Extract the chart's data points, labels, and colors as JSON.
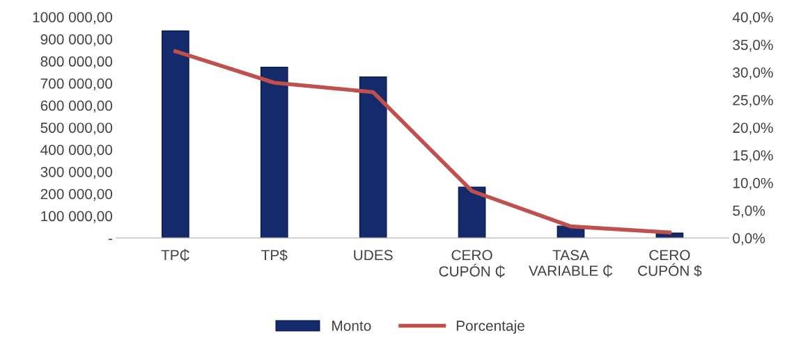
{
  "chart_data": {
    "type": "bar",
    "categories": [
      "TP₵",
      "TP$",
      "UDES",
      "CERO\nCUPÓN ₵",
      "TASA\nVARIABLE ₵",
      "CERO\nCUPÓN $"
    ],
    "series": [
      {
        "name": "Monto",
        "color": "#142a6b",
        "values": [
          937000,
          773000,
          729000,
          230000,
          54000,
          22000
        ]
      },
      {
        "name": "Porcentaje",
        "type": "line",
        "axis": "y2",
        "color": "#c0504d",
        "values": [
          33.8,
          28.1,
          26.4,
          8.5,
          2.1,
          1.0
        ]
      }
    ],
    "ylim": [
      0,
      1000000
    ],
    "yticks": [
      {
        "value": 0,
        "label": "-"
      },
      {
        "value": 100000,
        "label": "100 000,00"
      },
      {
        "value": 200000,
        "label": "200 000,00"
      },
      {
        "value": 300000,
        "label": "300 000,00"
      },
      {
        "value": 400000,
        "label": "400 000,00"
      },
      {
        "value": 500000,
        "label": "500 000,00"
      },
      {
        "value": 600000,
        "label": "600 000,00"
      },
      {
        "value": 700000,
        "label": "700 000,00"
      },
      {
        "value": 800000,
        "label": "800 000,00"
      },
      {
        "value": 900000,
        "label": "900 000,00"
      },
      {
        "value": 1000000,
        "label": "1000 000,00"
      }
    ],
    "y2lim": [
      0,
      40
    ],
    "y2ticks": [
      {
        "value": 0,
        "label": "0,0%"
      },
      {
        "value": 5,
        "label": "5,0%"
      },
      {
        "value": 10,
        "label": "10,0%"
      },
      {
        "value": 15,
        "label": "15,0%"
      },
      {
        "value": 20,
        "label": "20,0%"
      },
      {
        "value": 25,
        "label": "25,0%"
      },
      {
        "value": 30,
        "label": "30,0%"
      },
      {
        "value": 35,
        "label": "35,0%"
      },
      {
        "value": 40,
        "label": "40,0%"
      }
    ],
    "grid": false,
    "legend": "bottom",
    "marker": "none",
    "line_style": "solid"
  }
}
